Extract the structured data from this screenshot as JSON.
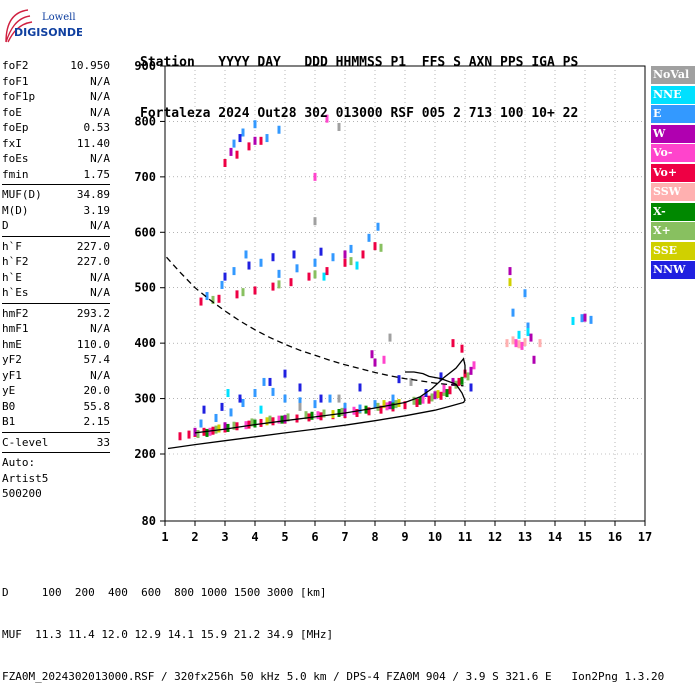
{
  "logo": {
    "line1": "Lowell",
    "line2": "DIGISONDE"
  },
  "header": {
    "labels": "Station   YYYY DAY   DDD HHMMSS P1  FFS S AXN PPS IGA PS",
    "values": "Fortaleza 2024 Out28 302 013000 RSF 005 2 713 100 10+ 22"
  },
  "params": {
    "group1": [
      {
        "k": "foF2",
        "v": "10.950"
      },
      {
        "k": "foF1",
        "v": "N/A"
      },
      {
        "k": "foF1p",
        "v": "N/A"
      },
      {
        "k": "foE",
        "v": "N/A"
      },
      {
        "k": "foEp",
        "v": "0.53"
      },
      {
        "k": "fxI",
        "v": "11.40"
      },
      {
        "k": "foEs",
        "v": "N/A"
      },
      {
        "k": "fmin",
        "v": "1.75"
      }
    ],
    "group2": [
      {
        "k": "MUF(D)",
        "v": "34.89"
      },
      {
        "k": "M(D)",
        "v": "3.19"
      },
      {
        "k": "D",
        "v": "N/A"
      }
    ],
    "group3": [
      {
        "k": "h`F",
        "v": "227.0"
      },
      {
        "k": "h`F2",
        "v": "227.0"
      },
      {
        "k": "h`E",
        "v": "N/A"
      },
      {
        "k": "h`Es",
        "v": "N/A"
      }
    ],
    "group4": [
      {
        "k": "hmF2",
        "v": "293.2"
      },
      {
        "k": "hmF1",
        "v": "N/A"
      },
      {
        "k": "hmE",
        "v": "110.0"
      },
      {
        "k": "yF2",
        "v": "57.4"
      },
      {
        "k": "yF1",
        "v": "N/A"
      },
      {
        "k": "yE",
        "v": "20.0"
      },
      {
        "k": "B0",
        "v": "55.8"
      },
      {
        "k": "B1",
        "v": "2.15"
      }
    ],
    "group5": [
      {
        "k": "C-level",
        "v": "33"
      }
    ],
    "auto_label": "Auto:",
    "auto_system": "Artist5",
    "auto_version": "500200"
  },
  "legend": [
    {
      "label": "NoVal",
      "color": "#a0a0a0"
    },
    {
      "label": "NNE",
      "color": "#00e0ff"
    },
    {
      "label": "E",
      "color": "#3399ff"
    },
    {
      "label": "W",
      "color": "#b000b0"
    },
    {
      "label": "Vo-",
      "color": "#ff44cc"
    },
    {
      "label": "Vo+",
      "color": "#ee0044"
    },
    {
      "label": "SSW",
      "color": "#ffb0b0"
    },
    {
      "label": "X-",
      "color": "#008800"
    },
    {
      "label": "X+",
      "color": "#88c060"
    },
    {
      "label": "SSE",
      "color": "#d0d000"
    },
    {
      "label": "NNW",
      "color": "#2020e0"
    }
  ],
  "footer": {
    "d_row": "D     100  200  400  600  800 1000 1500 3000 [km]",
    "muf_row": "MUF  11.3 11.4 12.0 12.9 14.1 15.9 21.2 34.9 [MHz]",
    "file_row": "FZA0M_2024302013000.RSF / 320fx256h 50 kHz 5.0 km / DPS-4 FZA0M 904 / 3.9 S 321.6 E   Ion2Png 1.3.20"
  },
  "chart_data": {
    "type": "scatter",
    "x_ticks": [
      "1",
      "2",
      "3",
      "4",
      "5",
      "6",
      "7",
      "8",
      "9",
      "10",
      "11",
      "12",
      "13",
      "14",
      "15",
      "16",
      "17"
    ],
    "y_ticks": [
      "80",
      "200",
      "300",
      "400",
      "500",
      "600",
      "700",
      "800",
      "900"
    ],
    "xlim": [
      1,
      17
    ],
    "grid": true,
    "series": [
      {
        "name": "Vo+",
        "color": "#ee0044",
        "points": [
          [
            1.5,
            232
          ],
          [
            1.8,
            235
          ],
          [
            2.0,
            238
          ],
          [
            2.3,
            240
          ],
          [
            2.6,
            242
          ],
          [
            3.0,
            246
          ],
          [
            3.4,
            250
          ],
          [
            3.8,
            253
          ],
          [
            4.2,
            256
          ],
          [
            4.6,
            259
          ],
          [
            5.0,
            262
          ],
          [
            5.4,
            264
          ],
          [
            5.8,
            266
          ],
          [
            6.2,
            268
          ],
          [
            6.6,
            270
          ],
          [
            7.0,
            272
          ],
          [
            7.4,
            274
          ],
          [
            7.8,
            277
          ],
          [
            8.2,
            280
          ],
          [
            8.6,
            284
          ],
          [
            9.0,
            288
          ],
          [
            9.4,
            292
          ],
          [
            9.8,
            298
          ],
          [
            10.2,
            305
          ],
          [
            10.5,
            315
          ],
          [
            10.8,
            330
          ],
          [
            11.0,
            345
          ],
          [
            10.9,
            390
          ],
          [
            10.6,
            400
          ],
          [
            2.2,
            475
          ],
          [
            2.8,
            480
          ],
          [
            3.4,
            488
          ],
          [
            4.0,
            495
          ],
          [
            4.6,
            502
          ],
          [
            5.2,
            510
          ],
          [
            5.8,
            520
          ],
          [
            6.4,
            530
          ],
          [
            7.0,
            545
          ],
          [
            7.6,
            560
          ],
          [
            8.0,
            575
          ],
          [
            3.0,
            725
          ],
          [
            3.4,
            740
          ],
          [
            3.8,
            755
          ],
          [
            4.2,
            765
          ]
        ]
      },
      {
        "name": "X+",
        "color": "#88c060",
        "points": [
          [
            2.1,
            236
          ],
          [
            2.7,
            244
          ],
          [
            3.3,
            251
          ],
          [
            3.9,
            257
          ],
          [
            4.5,
            262
          ],
          [
            5.1,
            266
          ],
          [
            5.7,
            270
          ],
          [
            6.3,
            273
          ],
          [
            6.9,
            276
          ],
          [
            7.5,
            280
          ],
          [
            8.1,
            285
          ],
          [
            8.7,
            290
          ],
          [
            9.3,
            296
          ],
          [
            9.9,
            302
          ],
          [
            10.3,
            312
          ],
          [
            10.7,
            325
          ],
          [
            11.1,
            340
          ],
          [
            2.6,
            478
          ],
          [
            3.6,
            492
          ],
          [
            4.8,
            506
          ],
          [
            6.0,
            524
          ],
          [
            7.2,
            548
          ],
          [
            8.2,
            572
          ]
        ]
      },
      {
        "name": "X-",
        "color": "#008800",
        "points": [
          [
            2.4,
            238
          ],
          [
            3.1,
            247
          ],
          [
            4.0,
            255
          ],
          [
            4.9,
            262
          ],
          [
            5.9,
            269
          ],
          [
            6.8,
            274
          ],
          [
            7.7,
            280
          ],
          [
            8.6,
            288
          ],
          [
            9.5,
            296
          ],
          [
            10.4,
            310
          ],
          [
            10.9,
            332
          ]
        ]
      },
      {
        "name": "E",
        "color": "#3399ff",
        "points": [
          [
            2.2,
            255
          ],
          [
            2.7,
            265
          ],
          [
            3.2,
            275
          ],
          [
            3.6,
            292
          ],
          [
            4.0,
            310
          ],
          [
            4.3,
            330
          ],
          [
            4.6,
            312
          ],
          [
            5.0,
            300
          ],
          [
            5.5,
            295
          ],
          [
            6.0,
            290
          ],
          [
            6.5,
            300
          ],
          [
            7.0,
            285
          ],
          [
            7.5,
            282
          ],
          [
            8.0,
            290
          ],
          [
            8.6,
            300
          ],
          [
            2.4,
            485
          ],
          [
            2.9,
            505
          ],
          [
            3.3,
            530
          ],
          [
            3.7,
            560
          ],
          [
            4.2,
            545
          ],
          [
            4.8,
            525
          ],
          [
            5.4,
            535
          ],
          [
            6.0,
            545
          ],
          [
            6.6,
            555
          ],
          [
            7.2,
            570
          ],
          [
            7.8,
            590
          ],
          [
            8.1,
            610
          ],
          [
            3.3,
            760
          ],
          [
            3.6,
            780
          ],
          [
            4.0,
            795
          ],
          [
            4.4,
            770
          ],
          [
            4.8,
            785
          ],
          [
            13.1,
            430
          ],
          [
            13.0,
            490
          ],
          [
            12.6,
            455
          ],
          [
            14.9,
            445
          ],
          [
            15.2,
            442
          ]
        ]
      },
      {
        "name": "NNE",
        "color": "#00e0ff",
        "points": [
          [
            3.1,
            310
          ],
          [
            3.5,
            300
          ],
          [
            4.2,
            280
          ],
          [
            6.3,
            520
          ],
          [
            7.4,
            540
          ],
          [
            13.1,
            420
          ],
          [
            12.8,
            415
          ],
          [
            14.6,
            440
          ]
        ]
      },
      {
        "name": "W",
        "color": "#b000b0",
        "points": [
          [
            2.0,
            240
          ],
          [
            3.0,
            250
          ],
          [
            5.0,
            263
          ],
          [
            7.0,
            275
          ],
          [
            8.5,
            288
          ],
          [
            10.0,
            306
          ],
          [
            10.6,
            330
          ],
          [
            11.2,
            350
          ],
          [
            8.0,
            365
          ],
          [
            7.9,
            380
          ],
          [
            3.2,
            745
          ],
          [
            4.0,
            765
          ],
          [
            7.0,
            560
          ],
          [
            12.5,
            530
          ],
          [
            13.2,
            410
          ],
          [
            13.3,
            370
          ],
          [
            15.0,
            446
          ]
        ]
      },
      {
        "name": "Vo-",
        "color": "#ff44cc",
        "points": [
          [
            2.5,
            240
          ],
          [
            3.7,
            252
          ],
          [
            4.8,
            262
          ],
          [
            6.1,
            270
          ],
          [
            7.3,
            278
          ],
          [
            8.4,
            286
          ],
          [
            9.6,
            298
          ],
          [
            10.3,
            318
          ],
          [
            11.3,
            360
          ],
          [
            8.3,
            370
          ],
          [
            6.0,
            700
          ],
          [
            6.4,
            805
          ],
          [
            12.7,
            400
          ],
          [
            12.9,
            395
          ]
        ]
      },
      {
        "name": "SSW",
        "color": "#ffb0b0",
        "points": [
          [
            12.4,
            400
          ],
          [
            12.6,
            405
          ],
          [
            12.8,
            398
          ],
          [
            13.0,
            402
          ],
          [
            13.5,
            400
          ]
        ]
      },
      {
        "name": "SSE",
        "color": "#d0d000",
        "points": [
          [
            2.8,
            246
          ],
          [
            4.4,
            259
          ],
          [
            6.6,
            272
          ],
          [
            8.8,
            292
          ],
          [
            10.1,
            308
          ],
          [
            8.3,
            290
          ],
          [
            12.5,
            510
          ]
        ]
      },
      {
        "name": "NNW",
        "color": "#2020e0",
        "points": [
          [
            2.3,
            280
          ],
          [
            2.9,
            285
          ],
          [
            3.5,
            300
          ],
          [
            4.5,
            330
          ],
          [
            5.0,
            345
          ],
          [
            5.5,
            320
          ],
          [
            6.2,
            300
          ],
          [
            7.5,
            320
          ],
          [
            8.8,
            335
          ],
          [
            9.7,
            310
          ],
          [
            10.2,
            340
          ],
          [
            11.2,
            320
          ],
          [
            3.0,
            520
          ],
          [
            3.8,
            540
          ],
          [
            4.6,
            555
          ],
          [
            5.3,
            560
          ],
          [
            6.2,
            565
          ],
          [
            3.5,
            770
          ]
        ]
      },
      {
        "name": "NoVal",
        "color": "#a0a0a0",
        "points": [
          [
            5.5,
            285
          ],
          [
            6.8,
            300
          ],
          [
            9.2,
            330
          ],
          [
            8.5,
            410
          ],
          [
            6.0,
            620
          ],
          [
            6.8,
            790
          ]
        ]
      }
    ],
    "curves": [
      {
        "name": "profile",
        "style": "solid",
        "color": "#000000",
        "points": [
          [
            1.1,
            210
          ],
          [
            2.0,
            217
          ],
          [
            3.0,
            224
          ],
          [
            4.0,
            231
          ],
          [
            5.0,
            238
          ],
          [
            6.0,
            245
          ],
          [
            7.0,
            252
          ],
          [
            8.0,
            260
          ],
          [
            9.0,
            269
          ],
          [
            10.0,
            279
          ],
          [
            10.5,
            286
          ],
          [
            10.95,
            293
          ],
          [
            11.0,
            297
          ],
          [
            10.9,
            310
          ],
          [
            10.7,
            326
          ],
          [
            10.2,
            336
          ],
          [
            9.8,
            340
          ],
          [
            9.6,
            345
          ],
          [
            9.3,
            348
          ],
          [
            9.0,
            348
          ]
        ]
      },
      {
        "name": "muf",
        "style": "solid",
        "color": "#000000",
        "points": [
          [
            2.0,
            238
          ],
          [
            3.0,
            245
          ],
          [
            4.0,
            253
          ],
          [
            5.0,
            260
          ],
          [
            6.0,
            267
          ],
          [
            7.0,
            274
          ],
          [
            8.0,
            283
          ],
          [
            9.0,
            293
          ],
          [
            9.5,
            303
          ],
          [
            9.9,
            318
          ],
          [
            10.3,
            338
          ],
          [
            10.7,
            355
          ],
          [
            10.95,
            372
          ],
          [
            11.0,
            360
          ],
          [
            11.0,
            345
          ]
        ]
      },
      {
        "name": "mfactor",
        "style": "dashed",
        "color": "#000000",
        "points": [
          [
            1.05,
            555
          ],
          [
            1.5,
            528
          ],
          [
            2.0,
            500
          ],
          [
            2.5,
            478
          ],
          [
            3.0,
            458
          ],
          [
            3.5,
            440
          ],
          [
            4.0,
            424
          ],
          [
            4.5,
            410
          ],
          [
            5.0,
            398
          ],
          [
            5.5,
            387
          ],
          [
            6.0,
            378
          ],
          [
            6.5,
            369
          ],
          [
            7.0,
            361
          ],
          [
            7.5,
            354
          ],
          [
            8.0,
            347
          ],
          [
            8.5,
            341
          ],
          [
            9.0,
            336
          ],
          [
            9.5,
            332
          ],
          [
            10.0,
            328
          ],
          [
            10.5,
            325
          ],
          [
            10.95,
            323
          ]
        ]
      }
    ]
  }
}
